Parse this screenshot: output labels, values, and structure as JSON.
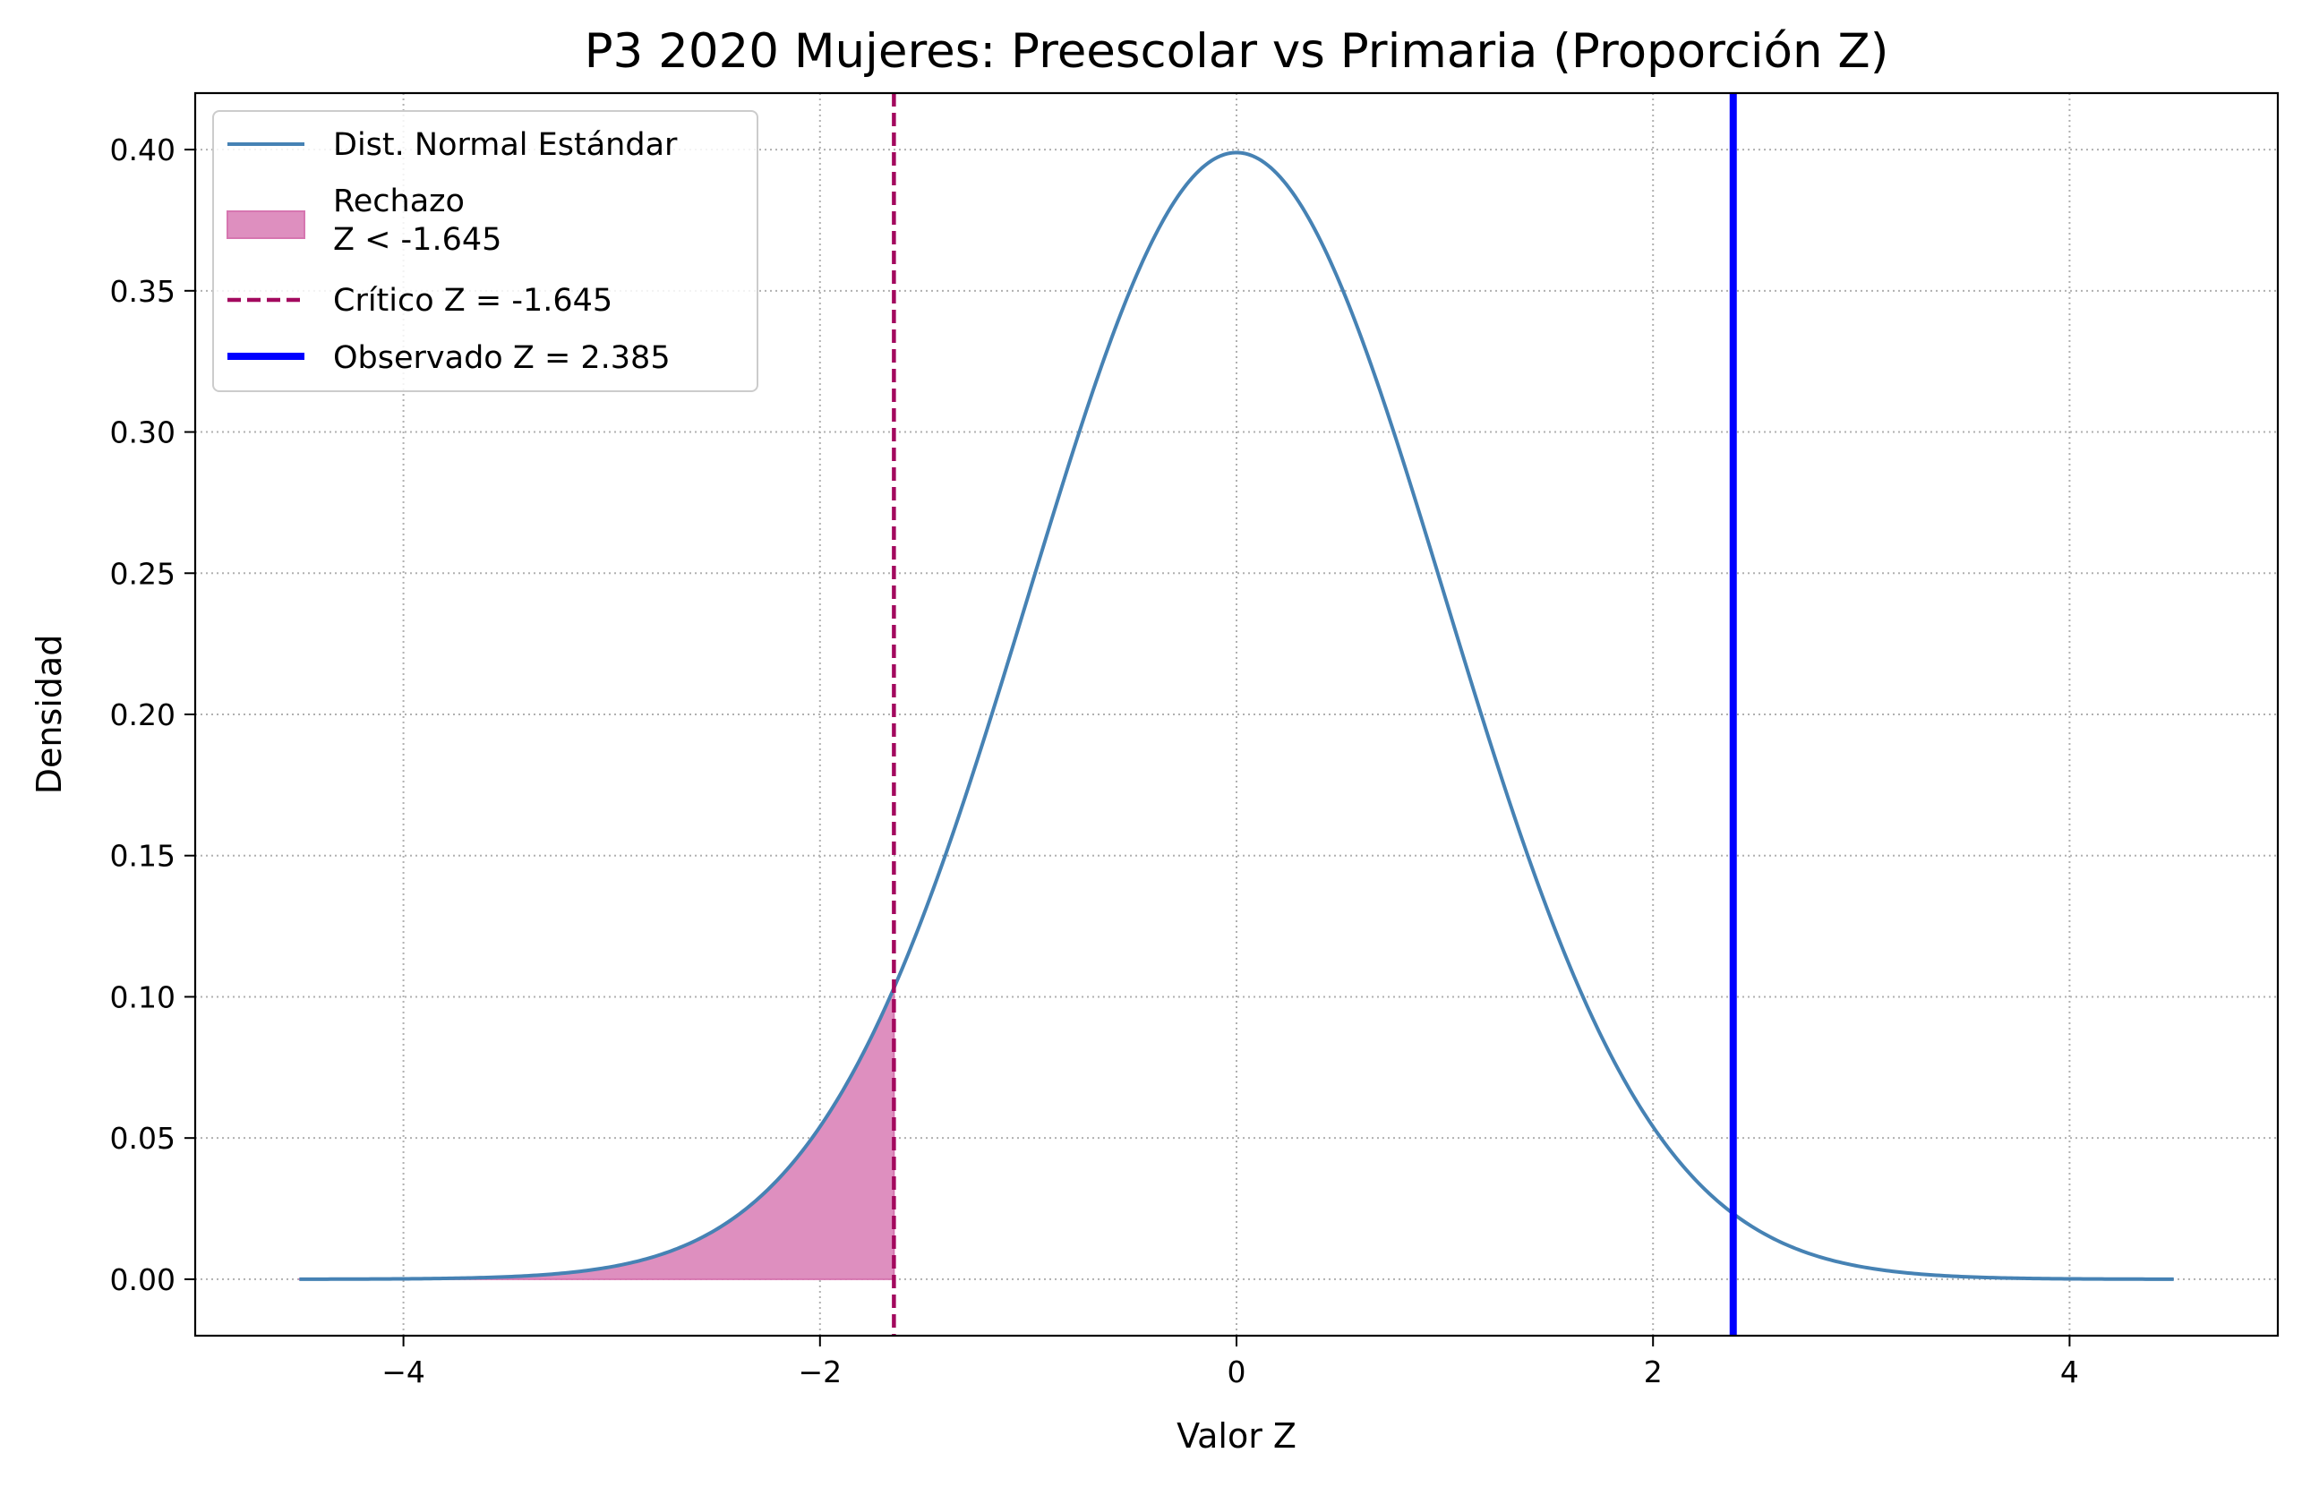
{
  "chart_data": {
    "type": "line",
    "title": "P3 2020 Mujeres: Preescolar vs Primaria (Proporción Z)",
    "xlabel": "Valor Z",
    "ylabel": "Densidad",
    "xlim": [
      -5.0,
      5.0
    ],
    "ylim": [
      -0.02,
      0.42
    ],
    "grid": true,
    "grid_style": "dotted",
    "legend_position": "top-left",
    "x_ticks": [
      -4,
      -2,
      0,
      2,
      4
    ],
    "x_tick_labels": [
      "−4",
      "−2",
      "0",
      "2",
      "4"
    ],
    "y_ticks": [
      0.0,
      0.05,
      0.1,
      0.15,
      0.2,
      0.25,
      0.3,
      0.35,
      0.4
    ],
    "y_tick_labels": [
      "0.00",
      "0.05",
      "0.10",
      "0.15",
      "0.20",
      "0.25",
      "0.30",
      "0.35",
      "0.40"
    ],
    "series": [
      {
        "name": "Dist. Normal Estándar",
        "kind": "curve",
        "distribution": "standard normal pdf",
        "x_range": [
          -4.5,
          4.5
        ],
        "color": "#4682b4"
      },
      {
        "name": "Rechazo\nZ < -1.645",
        "kind": "area",
        "x_range": [
          -4.5,
          -1.645
        ],
        "color": "#de8fbf",
        "edge_color": "#d676b0"
      },
      {
        "name": "Crítico Z = -1.645",
        "kind": "vline",
        "x": -1.645,
        "linestyle": "dashed",
        "color": "#a3095e"
      },
      {
        "name": "Observado Z = 2.385",
        "kind": "vline",
        "x": 2.385,
        "linestyle": "solid",
        "color": "#0000ff"
      }
    ]
  }
}
